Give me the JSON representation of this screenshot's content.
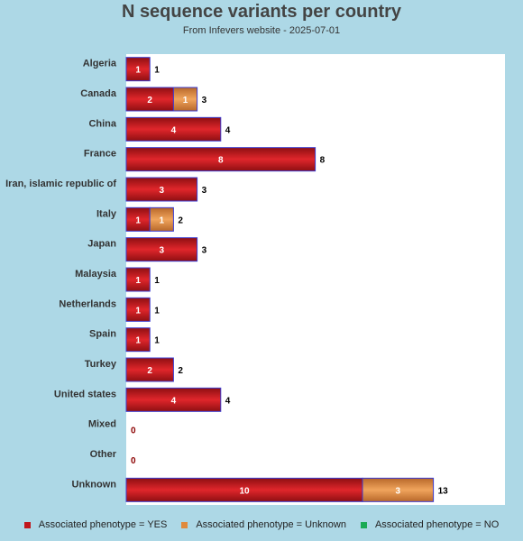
{
  "chart_data": {
    "type": "bar",
    "orientation": "horizontal",
    "stacked": true,
    "title": "N sequence variants per country",
    "subtitle": "From Infevers website - 2025-07-01",
    "categories": [
      "Algeria",
      "Canada",
      "China",
      "France",
      "Iran, islamic republic of",
      "Italy",
      "Japan",
      "Malaysia",
      "Netherlands",
      "Spain",
      "Turkey",
      "United states",
      "Mixed",
      "Other",
      "Unknown"
    ],
    "series": [
      {
        "name": "Associated phenotype = YES",
        "color": "#c0161b",
        "values": [
          1,
          2,
          4,
          8,
          3,
          1,
          3,
          1,
          1,
          1,
          2,
          4,
          0,
          0,
          10
        ]
      },
      {
        "name": "Associated phenotype = Unknown",
        "color": "#e08a3c",
        "values": [
          0,
          1,
          0,
          0,
          0,
          1,
          0,
          0,
          0,
          0,
          0,
          0,
          0,
          0,
          3
        ]
      },
      {
        "name": "Associated phenotype = NO",
        "color": "#1aaa55",
        "values": [
          0,
          0,
          0,
          0,
          0,
          0,
          0,
          0,
          0,
          0,
          0,
          0,
          0,
          0,
          0
        ]
      }
    ],
    "totals": [
      1,
      3,
      4,
      8,
      3,
      2,
      3,
      1,
      1,
      1,
      2,
      4,
      0,
      0,
      13
    ],
    "xlim": [
      0,
      16
    ],
    "grid": false,
    "legend_position": "bottom"
  }
}
